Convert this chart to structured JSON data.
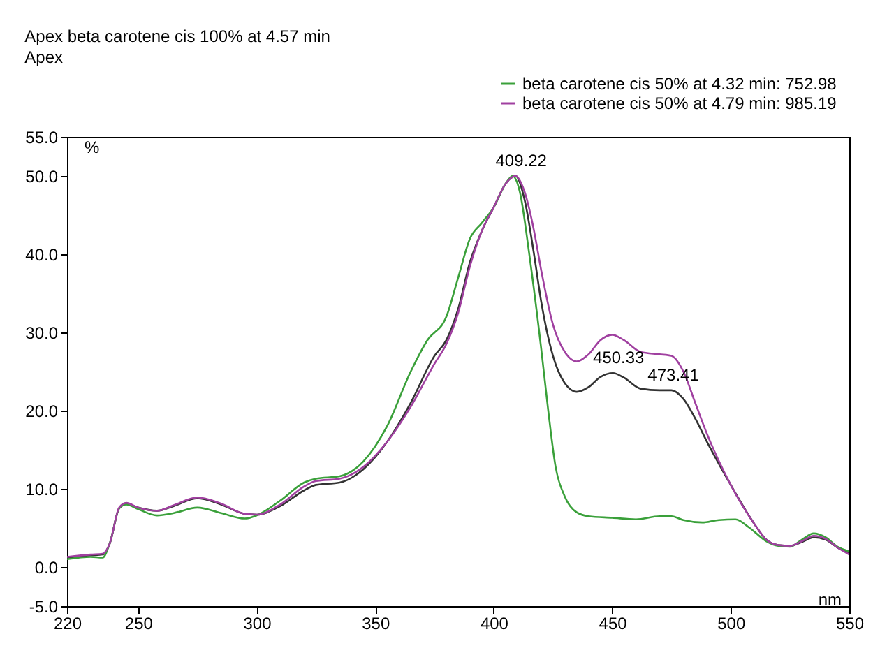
{
  "chart_data": {
    "type": "line",
    "title": "Apex beta carotene cis  100% at 4.57 min",
    "subtitle": "Apex",
    "xlabel": "nm",
    "ylabel": "%",
    "xlim": [
      220,
      550
    ],
    "xticks": [
      220,
      250,
      300,
      350,
      400,
      450,
      500,
      550
    ],
    "ylim": [
      -5,
      55
    ],
    "yticks": [
      {
        "value": -5,
        "label": "-5.0"
      },
      {
        "value": 0,
        "label": "0.0"
      },
      {
        "value": 10,
        "label": "10.0"
      },
      {
        "value": 20,
        "label": "20.0"
      },
      {
        "value": 30,
        "label": "30.0"
      },
      {
        "value": 40,
        "label": "40.0"
      },
      {
        "value": 50,
        "label": "50.0"
      },
      {
        "value": 55,
        "label": "55.0"
      }
    ],
    "grid": false,
    "legend": "top right",
    "line_style": "solid",
    "annotations": [
      {
        "text": "409.22",
        "x": 409.22,
        "y": 50
      },
      {
        "text": "450.33",
        "x": 450.33,
        "y": 24.8
      },
      {
        "text": "473.41",
        "x": 473.41,
        "y": 22.6
      }
    ],
    "series": [
      {
        "color": "#333333",
        "x": [
          220,
          230,
          235,
          238,
          242,
          245,
          250,
          258,
          265,
          275,
          285,
          295,
          300,
          310,
          320,
          325,
          335,
          345,
          355,
          365,
          375,
          380,
          385,
          390,
          395,
          400,
          405,
          409.22,
          413,
          417,
          420,
          425,
          430,
          435,
          440,
          445,
          450.33,
          455,
          462,
          470,
          475,
          480,
          485,
          490,
          500,
          510,
          515,
          520,
          525,
          530,
          535,
          540,
          545,
          550
        ],
        "values": [
          1.2,
          1.5,
          1.6,
          3,
          7.5,
          8.1,
          7.6,
          7.2,
          7.8,
          8.8,
          8,
          6.8,
          6.7,
          7.8,
          9.8,
          10.5,
          10.8,
          12.5,
          16,
          21,
          27,
          29,
          33,
          39,
          43,
          46,
          49,
          50,
          47,
          40,
          34,
          27,
          23.5,
          22.4,
          23,
          24.3,
          24.8,
          24.2,
          22.8,
          22.6,
          22.6,
          21.5,
          19,
          16,
          10.5,
          5.5,
          3.5,
          2.8,
          2.7,
          3.2,
          3.8,
          3.5,
          2.5,
          1.8
        ]
      },
      {
        "name": "beta carotene cis  50% at 4.32 min: 752.98",
        "color": "#3aa03a",
        "x": [
          220,
          230,
          235,
          238,
          242,
          245,
          250,
          258,
          265,
          275,
          285,
          295,
          300,
          310,
          320,
          325,
          335,
          345,
          355,
          365,
          372,
          380,
          385,
          390,
          395,
          400,
          405,
          408,
          411,
          415,
          420,
          423,
          426,
          430,
          435,
          440,
          450,
          460,
          470,
          475,
          480,
          488,
          495,
          502,
          508,
          515,
          520,
          525,
          530,
          535,
          540,
          545,
          550
        ],
        "values": [
          1,
          1.3,
          1.2,
          3,
          7.5,
          8,
          7.4,
          6.6,
          6.9,
          7.6,
          6.9,
          6.2,
          6.6,
          8.5,
          10.8,
          11.3,
          11.6,
          13.5,
          18,
          25,
          29,
          32,
          37,
          42,
          44,
          46,
          49,
          50,
          48,
          40,
          28,
          20,
          13,
          9,
          7,
          6.5,
          6.3,
          6.1,
          6.5,
          6.5,
          6,
          5.7,
          6,
          6.1,
          5,
          3.3,
          2.7,
          2.6,
          3.5,
          4.3,
          3.8,
          2.6,
          2
        ]
      },
      {
        "name": "beta carotene cis  50% at 4.79 min: 985.19",
        "color": "#a040a0",
        "x": [
          220,
          230,
          235,
          238,
          242,
          245,
          250,
          258,
          265,
          275,
          285,
          295,
          300,
          310,
          320,
          325,
          335,
          345,
          355,
          365,
          375,
          380,
          385,
          390,
          395,
          400,
          405,
          409.22,
          413,
          417,
          420,
          425,
          430,
          435,
          440,
          445,
          450,
          455,
          462,
          470,
          475,
          480,
          485,
          490,
          500,
          510,
          515,
          520,
          525,
          530,
          535,
          540,
          545,
          550
        ],
        "values": [
          1.3,
          1.6,
          1.7,
          3,
          7.6,
          8.2,
          7.6,
          7.2,
          7.9,
          8.9,
          8.1,
          6.8,
          6.7,
          8,
          10.3,
          11,
          11.3,
          12.8,
          16,
          20.5,
          26,
          28.5,
          32.5,
          38.5,
          43,
          46,
          49,
          50,
          48,
          43,
          38,
          31,
          27.5,
          26.3,
          27.2,
          29,
          29.7,
          29,
          27.5,
          27.2,
          27,
          25,
          21,
          17,
          10.5,
          5.5,
          3.5,
          2.8,
          2.7,
          3.3,
          4,
          3.6,
          2.5,
          1.6
        ]
      }
    ]
  }
}
